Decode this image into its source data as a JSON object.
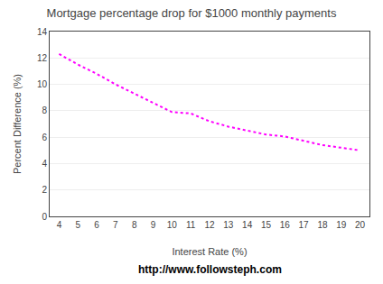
{
  "chart_data": {
    "type": "line",
    "title": "Mortgage percentage drop for $1000 monthly payments",
    "xlabel": "Interest Rate (%)",
    "ylabel": "Percent Difference (%)",
    "annotations": [
      "http://www.followsteph.com"
    ],
    "x": [
      4,
      5,
      6,
      7,
      8,
      9,
      10,
      11,
      12,
      13,
      14,
      15,
      16,
      17,
      18,
      19,
      20
    ],
    "values": [
      12.3,
      11.5,
      10.8,
      10.0,
      9.3,
      8.6,
      7.9,
      7.8,
      7.2,
      6.8,
      6.5,
      6.2,
      6.05,
      5.7,
      5.4,
      5.2,
      5.0
    ],
    "xlim": [
      3.5,
      20.5
    ],
    "ylim": [
      0,
      14
    ],
    "xticks": [
      4,
      5,
      6,
      7,
      8,
      9,
      10,
      11,
      12,
      13,
      14,
      15,
      16,
      17,
      18,
      19,
      20
    ],
    "yticks": [
      0,
      2,
      4,
      6,
      8,
      10,
      12,
      14
    ],
    "color": "#FF00FF",
    "line_style": "dotted",
    "grid": "y"
  }
}
